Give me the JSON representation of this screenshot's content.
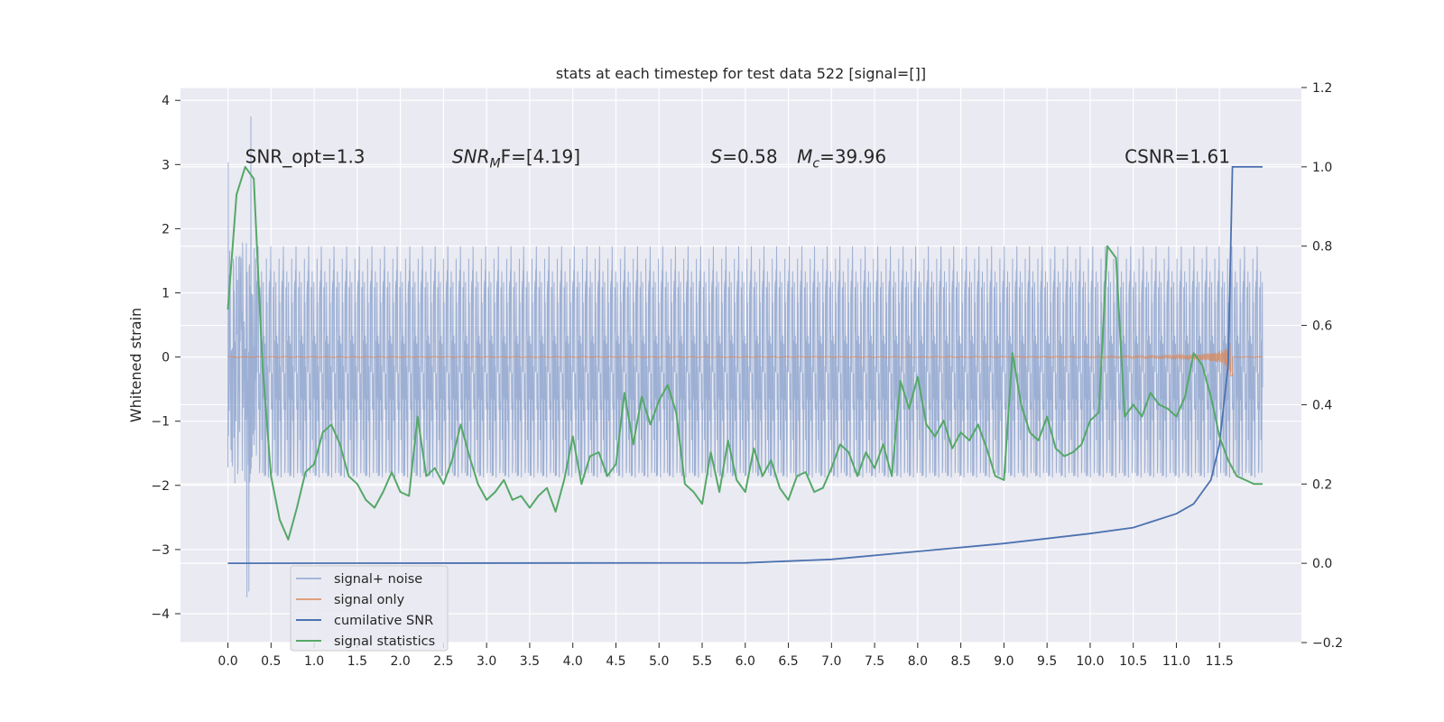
{
  "chart_data": {
    "type": "line",
    "title": "stats at each timestep for test data 522 [signal=[]]",
    "xlabel": "",
    "ylabel": "Whitened strain",
    "xlim": [
      -0.55,
      12.45
    ],
    "ylim": [
      -4.45,
      4.2
    ],
    "y2lim": [
      -0.2,
      1.2
    ],
    "grid": true,
    "x_ticks": [
      0.0,
      0.5,
      1.0,
      1.5,
      2.0,
      2.5,
      3.0,
      3.5,
      4.0,
      4.5,
      5.0,
      5.5,
      6.0,
      6.5,
      7.0,
      7.5,
      8.0,
      8.5,
      9.0,
      9.5,
      10.0,
      10.5,
      11.0,
      11.5
    ],
    "x_tick_labels": [
      "0.0",
      "0.5",
      "1.0",
      "1.5",
      "2.0",
      "2.5",
      "3.0",
      "3.5",
      "4.0",
      "4.5",
      "5.0",
      "5.5",
      "6.0",
      "6.5",
      "7.0",
      "7.5",
      "8.0",
      "8.5",
      "9.0",
      "9.5",
      "10.0",
      "10.5",
      "11.0",
      "11.5"
    ],
    "y_ticks": [
      4,
      3,
      2,
      1,
      0,
      -1,
      -2,
      -3,
      -4
    ],
    "y_tick_labels": [
      "4",
      "3",
      "2",
      "1",
      "0",
      "−1",
      "−2",
      "−3",
      "−4"
    ],
    "y2_ticks": [
      1.2,
      1.0,
      0.8,
      0.6,
      0.4,
      0.2,
      0.0,
      -0.2
    ],
    "y2_tick_labels": [
      "1.2",
      "1.0",
      "0.8",
      "0.6",
      "0.4",
      "0.2",
      "0.0",
      "−0.2"
    ],
    "annotations": [
      {
        "text": "SNR_opt=1.3",
        "x": 0.2,
        "y": 3.0
      },
      {
        "text": "SNR",
        "sub": "M",
        "suffix": "F=[4.19]",
        "x": 2.6,
        "y": 3.0
      },
      {
        "text": "S",
        "suffix": "=0.58",
        "x": 5.6,
        "y": 3.0
      },
      {
        "text": "M",
        "sub": "c",
        "suffix": "=39.96",
        "x": 6.6,
        "y": 3.0
      },
      {
        "text": "CSNR=1.61",
        "x": 10.4,
        "y": 3.0
      }
    ],
    "legend": {
      "position": "lower-left",
      "entries": [
        "signal+ noise",
        "signal only",
        "cumilative SNR",
        "signal statistics"
      ]
    },
    "colors": {
      "background": "#eaeaf2",
      "grid": "#ffffff",
      "noise": "#8fa6cf",
      "signal": "#dd8452",
      "cumulative": "#4c72b0",
      "statistics": "#55a868"
    },
    "series": [
      {
        "name": "signal+ noise",
        "axis": "left",
        "style": "dense noise trace",
        "x_range": [
          0.0,
          12.0
        ],
        "typical_range": [
          -2.0,
          1.9
        ],
        "extremes": [
          -4.1,
          3.8
        ]
      },
      {
        "name": "signal only",
        "axis": "left",
        "style": "chirp",
        "x_range": [
          0.0,
          12.0
        ],
        "peak_amplitude": 0.3,
        "peak_x": 11.6
      },
      {
        "name": "cumilative SNR",
        "axis": "right",
        "x": [
          0.0,
          6.0,
          7.0,
          8.0,
          9.0,
          10.0,
          10.5,
          11.0,
          11.2,
          11.4,
          11.5,
          11.6,
          11.65,
          11.7,
          12.0
        ],
        "y": [
          0.0,
          0.001,
          0.01,
          0.03,
          0.05,
          0.075,
          0.09,
          0.125,
          0.15,
          0.21,
          0.3,
          0.5,
          1.0,
          1.0,
          1.0
        ]
      },
      {
        "name": "signal statistics",
        "axis": "right",
        "x": [
          0.0,
          0.1,
          0.2,
          0.3,
          0.4,
          0.5,
          0.6,
          0.7,
          0.8,
          0.9,
          1.0,
          1.1,
          1.2,
          1.3,
          1.4,
          1.5,
          1.6,
          1.7,
          1.8,
          1.9,
          2.0,
          2.1,
          2.2,
          2.3,
          2.4,
          2.5,
          2.6,
          2.7,
          2.8,
          2.9,
          3.0,
          3.1,
          3.2,
          3.3,
          3.4,
          3.5,
          3.6,
          3.7,
          3.8,
          3.9,
          4.0,
          4.1,
          4.2,
          4.3,
          4.4,
          4.5,
          4.6,
          4.7,
          4.8,
          4.9,
          5.0,
          5.1,
          5.2,
          5.3,
          5.4,
          5.5,
          5.6,
          5.7,
          5.8,
          5.9,
          6.0,
          6.1,
          6.2,
          6.3,
          6.4,
          6.5,
          6.6,
          6.7,
          6.8,
          6.9,
          7.0,
          7.1,
          7.2,
          7.3,
          7.4,
          7.5,
          7.6,
          7.7,
          7.8,
          7.9,
          8.0,
          8.1,
          8.2,
          8.3,
          8.4,
          8.5,
          8.6,
          8.7,
          8.8,
          8.9,
          9.0,
          9.1,
          9.2,
          9.3,
          9.4,
          9.5,
          9.6,
          9.7,
          9.8,
          9.9,
          10.0,
          10.1,
          10.2,
          10.3,
          10.4,
          10.5,
          10.6,
          10.7,
          10.8,
          10.9,
          11.0,
          11.1,
          11.2,
          11.3,
          11.4,
          11.5,
          11.6,
          11.7,
          11.8,
          11.9,
          12.0
        ],
        "y": [
          0.64,
          0.93,
          1.0,
          0.97,
          0.5,
          0.22,
          0.11,
          0.06,
          0.14,
          0.23,
          0.25,
          0.33,
          0.35,
          0.3,
          0.22,
          0.2,
          0.16,
          0.14,
          0.18,
          0.23,
          0.18,
          0.17,
          0.37,
          0.22,
          0.24,
          0.2,
          0.26,
          0.35,
          0.27,
          0.2,
          0.16,
          0.18,
          0.21,
          0.16,
          0.17,
          0.14,
          0.17,
          0.19,
          0.13,
          0.21,
          0.32,
          0.2,
          0.27,
          0.28,
          0.22,
          0.25,
          0.43,
          0.3,
          0.42,
          0.35,
          0.41,
          0.45,
          0.38,
          0.2,
          0.18,
          0.15,
          0.28,
          0.18,
          0.31,
          0.21,
          0.18,
          0.29,
          0.22,
          0.26,
          0.19,
          0.16,
          0.22,
          0.23,
          0.18,
          0.19,
          0.24,
          0.3,
          0.28,
          0.22,
          0.28,
          0.24,
          0.3,
          0.22,
          0.46,
          0.39,
          0.47,
          0.35,
          0.32,
          0.36,
          0.29,
          0.33,
          0.31,
          0.35,
          0.29,
          0.22,
          0.21,
          0.53,
          0.4,
          0.33,
          0.31,
          0.37,
          0.29,
          0.27,
          0.28,
          0.3,
          0.36,
          0.38,
          0.8,
          0.77,
          0.37,
          0.4,
          0.37,
          0.43,
          0.4,
          0.39,
          0.37,
          0.42,
          0.53,
          0.5,
          0.42,
          0.32,
          0.26,
          0.22,
          0.21,
          0.2,
          0.2
        ]
      }
    ]
  }
}
